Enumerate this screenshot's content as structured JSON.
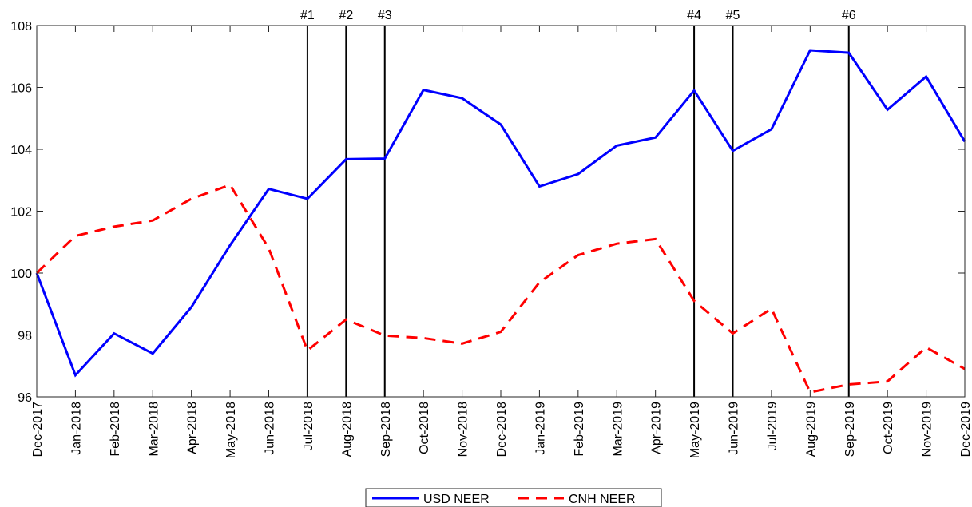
{
  "chart_data": {
    "type": "line",
    "categories": [
      "Dec-2017",
      "Jan-2018",
      "Feb-2018",
      "Mar-2018",
      "Apr-2018",
      "May-2018",
      "Jun-2018",
      "Jul-2018",
      "Aug-2018",
      "Sep-2018",
      "Oct-2018",
      "Nov-2018",
      "Dec-2018",
      "Jan-2019",
      "Feb-2019",
      "Mar-2019",
      "Apr-2019",
      "May-2019",
      "Jun-2019",
      "Jul-2019",
      "Aug-2019",
      "Sep-2019",
      "Oct-2019",
      "Nov-2019",
      "Dec-2019"
    ],
    "series": [
      {
        "name": "USD NEER",
        "color": "#0000ff",
        "dash": "solid",
        "values": [
          100,
          96.7,
          98.05,
          97.4,
          98.9,
          100.9,
          102.72,
          102.4,
          103.68,
          103.7,
          105.92,
          105.65,
          104.8,
          102.8,
          103.2,
          104.12,
          104.38,
          105.9,
          103.95,
          104.65,
          107.2,
          107.12,
          105.28,
          106.35,
          104.25
        ]
      },
      {
        "name": "CNH NEER",
        "color": "#ff0000",
        "dash": "dashed",
        "values": [
          100,
          101.2,
          101.5,
          101.7,
          102.4,
          102.85,
          100.8,
          97.5,
          98.5,
          97.98,
          97.9,
          97.72,
          98.1,
          99.7,
          100.58,
          100.95,
          101.1,
          99.1,
          98.05,
          98.85,
          96.15,
          96.4,
          96.5,
          97.6,
          96.9
        ]
      }
    ],
    "events": [
      {
        "label": "#1",
        "category": "Jul-2018"
      },
      {
        "label": "#2",
        "category": "Aug-2018"
      },
      {
        "label": "#3",
        "category": "Sep-2018"
      },
      {
        "label": "#4",
        "category": "May-2019"
      },
      {
        "label": "#5",
        "category": "Jun-2019"
      },
      {
        "label": "#6",
        "category": "Sep-2019"
      }
    ],
    "ylim": [
      96,
      108
    ],
    "yticks": [
      96,
      98,
      100,
      102,
      104,
      106,
      108
    ],
    "legend": "bottom"
  }
}
